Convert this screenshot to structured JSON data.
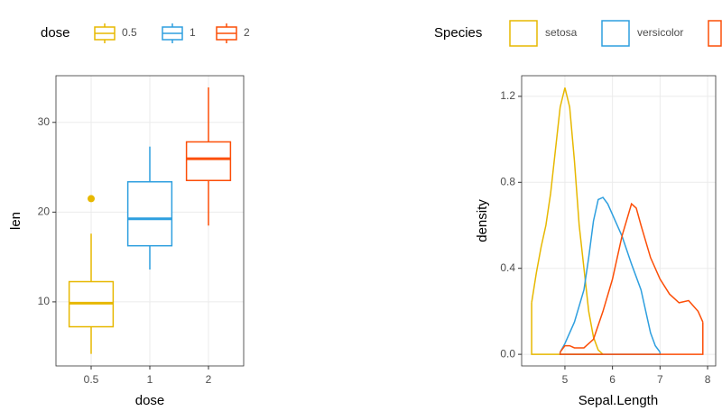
{
  "chart_data": [
    {
      "type": "box",
      "legend_title": "dose",
      "x_label": "dose",
      "y_label": "len",
      "categories": [
        "0.5",
        "1",
        "2"
      ],
      "series": [
        {
          "name": "0.5",
          "color": "#E7B800",
          "min": 4.2,
          "q1": 7.225,
          "median": 9.85,
          "q3": 12.25,
          "max": 17.6,
          "outliers": [
            21.5
          ]
        },
        {
          "name": "1",
          "color": "#2E9FDF",
          "min": 13.6,
          "q1": 16.25,
          "median": 19.25,
          "q3": 23.375,
          "max": 27.3,
          "outliers": []
        },
        {
          "name": "2",
          "color": "#FC4E07",
          "min": 18.5,
          "q1": 23.525,
          "median": 25.95,
          "q3": 27.825,
          "max": 33.9,
          "outliers": []
        }
      ],
      "ylim": [
        2.86,
        35.2
      ],
      "yticks": [
        10,
        20,
        30
      ],
      "grid": true
    },
    {
      "type": "density",
      "legend_title": "Species",
      "x_label": "Sepal.Length",
      "y_label": "density",
      "series": [
        {
          "name": "setosa",
          "color": "#E7B800",
          "x": [
            4.3,
            4.4,
            4.5,
            4.6,
            4.7,
            4.8,
            4.9,
            5.0,
            5.1,
            5.2,
            5.3,
            5.4,
            5.5,
            5.6,
            5.7,
            5.8
          ],
          "values": [
            0.24,
            0.38,
            0.5,
            0.6,
            0.75,
            0.95,
            1.15,
            1.24,
            1.15,
            0.9,
            0.6,
            0.4,
            0.2,
            0.08,
            0.02,
            0.0
          ]
        },
        {
          "name": "versicolor",
          "color": "#2E9FDF",
          "x": [
            4.9,
            5.0,
            5.2,
            5.4,
            5.5,
            5.6,
            5.7,
            5.8,
            5.9,
            6.0,
            6.2,
            6.4,
            6.6,
            6.8,
            6.9,
            7.0
          ],
          "values": [
            0.01,
            0.05,
            0.15,
            0.3,
            0.45,
            0.62,
            0.72,
            0.73,
            0.7,
            0.65,
            0.55,
            0.42,
            0.3,
            0.1,
            0.04,
            0.01
          ]
        },
        {
          "color": "#FC4E07",
          "x": [
            4.9,
            5.0,
            5.1,
            5.2,
            5.4,
            5.6,
            5.8,
            6.0,
            6.2,
            6.4,
            6.5,
            6.6,
            6.8,
            7.0,
            7.2,
            7.4,
            7.6,
            7.8,
            7.9
          ],
          "values": [
            0.01,
            0.04,
            0.04,
            0.03,
            0.03,
            0.07,
            0.2,
            0.35,
            0.55,
            0.7,
            0.68,
            0.6,
            0.45,
            0.35,
            0.28,
            0.24,
            0.25,
            0.2,
            0.15
          ]
        }
      ],
      "xlim": [
        4.09,
        8.17
      ],
      "xticks": [
        5,
        6,
        7,
        8
      ],
      "ylim": [
        -0.054,
        1.296
      ],
      "yticks": [
        {
          "value": 0,
          "label": "0.0"
        },
        0.4,
        0.8,
        1.2
      ],
      "grid": true
    }
  ]
}
